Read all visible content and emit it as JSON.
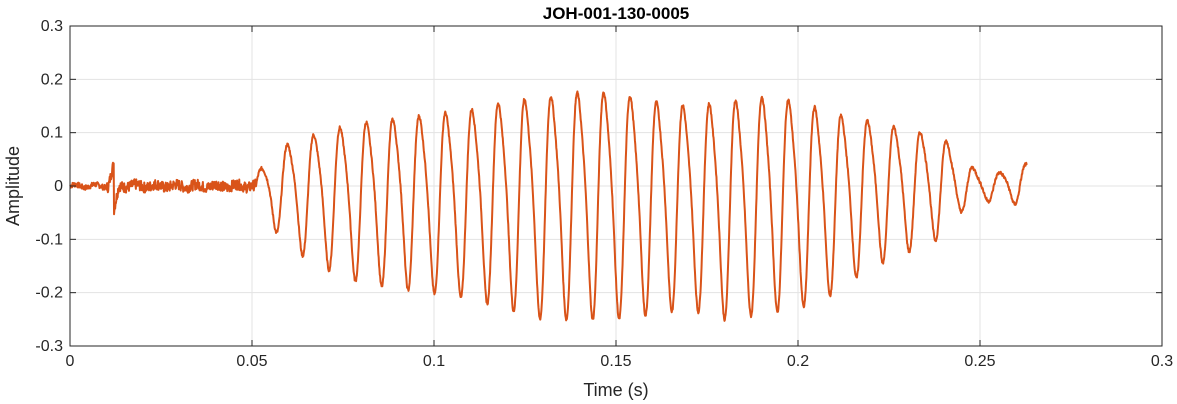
{
  "chart_data": {
    "type": "line",
    "title": "JOH-001-130-0005",
    "xlabel": "Time (s)",
    "ylabel": "Amplitude",
    "xlim": [
      0,
      0.3
    ],
    "ylim": [
      -0.3,
      0.3
    ],
    "xticks": [
      0,
      0.05,
      0.1,
      0.15,
      0.2,
      0.25,
      0.3
    ],
    "xtick_labels": [
      "0",
      "0.05",
      "0.1",
      "0.15",
      "0.2",
      "0.25",
      "0.3"
    ],
    "yticks": [
      -0.3,
      -0.2,
      -0.1,
      0,
      0.1,
      0.2,
      0.3
    ],
    "ytick_labels": [
      "-0.3",
      "-0.2",
      "-0.1",
      "0",
      "0.1",
      "0.2",
      "0.3"
    ],
    "grid": true,
    "line_color": "#D95319",
    "signal": {
      "start": 0,
      "end": 0.263,
      "onset": 0.051,
      "envelope": {
        "t": [
          0.051,
          0.06,
          0.07,
          0.08,
          0.09,
          0.1,
          0.11,
          0.12,
          0.13,
          0.14,
          0.15,
          0.16,
          0.17,
          0.18,
          0.19,
          0.2,
          0.21,
          0.22,
          0.23,
          0.24,
          0.245,
          0.25,
          0.255,
          0.263
        ],
        "max": [
          0.03,
          0.1,
          0.13,
          0.15,
          0.16,
          0.17,
          0.18,
          0.2,
          0.21,
          0.22,
          0.22,
          0.2,
          0.19,
          0.2,
          0.21,
          0.2,
          0.17,
          0.15,
          0.13,
          0.11,
          0.06,
          0.03,
          0.03,
          0.05
        ],
        "min": [
          -0.04,
          -0.12,
          -0.16,
          -0.19,
          -0.2,
          -0.21,
          -0.22,
          -0.24,
          -0.26,
          -0.26,
          -0.26,
          -0.25,
          -0.24,
          -0.26,
          -0.25,
          -0.24,
          -0.21,
          -0.16,
          -0.13,
          -0.1,
          -0.05,
          -0.03,
          -0.03,
          -0.04
        ]
      },
      "spike": {
        "t": 0.012,
        "max": 0.04,
        "min": -0.05
      },
      "noise_amplitude": 0.01
    }
  }
}
